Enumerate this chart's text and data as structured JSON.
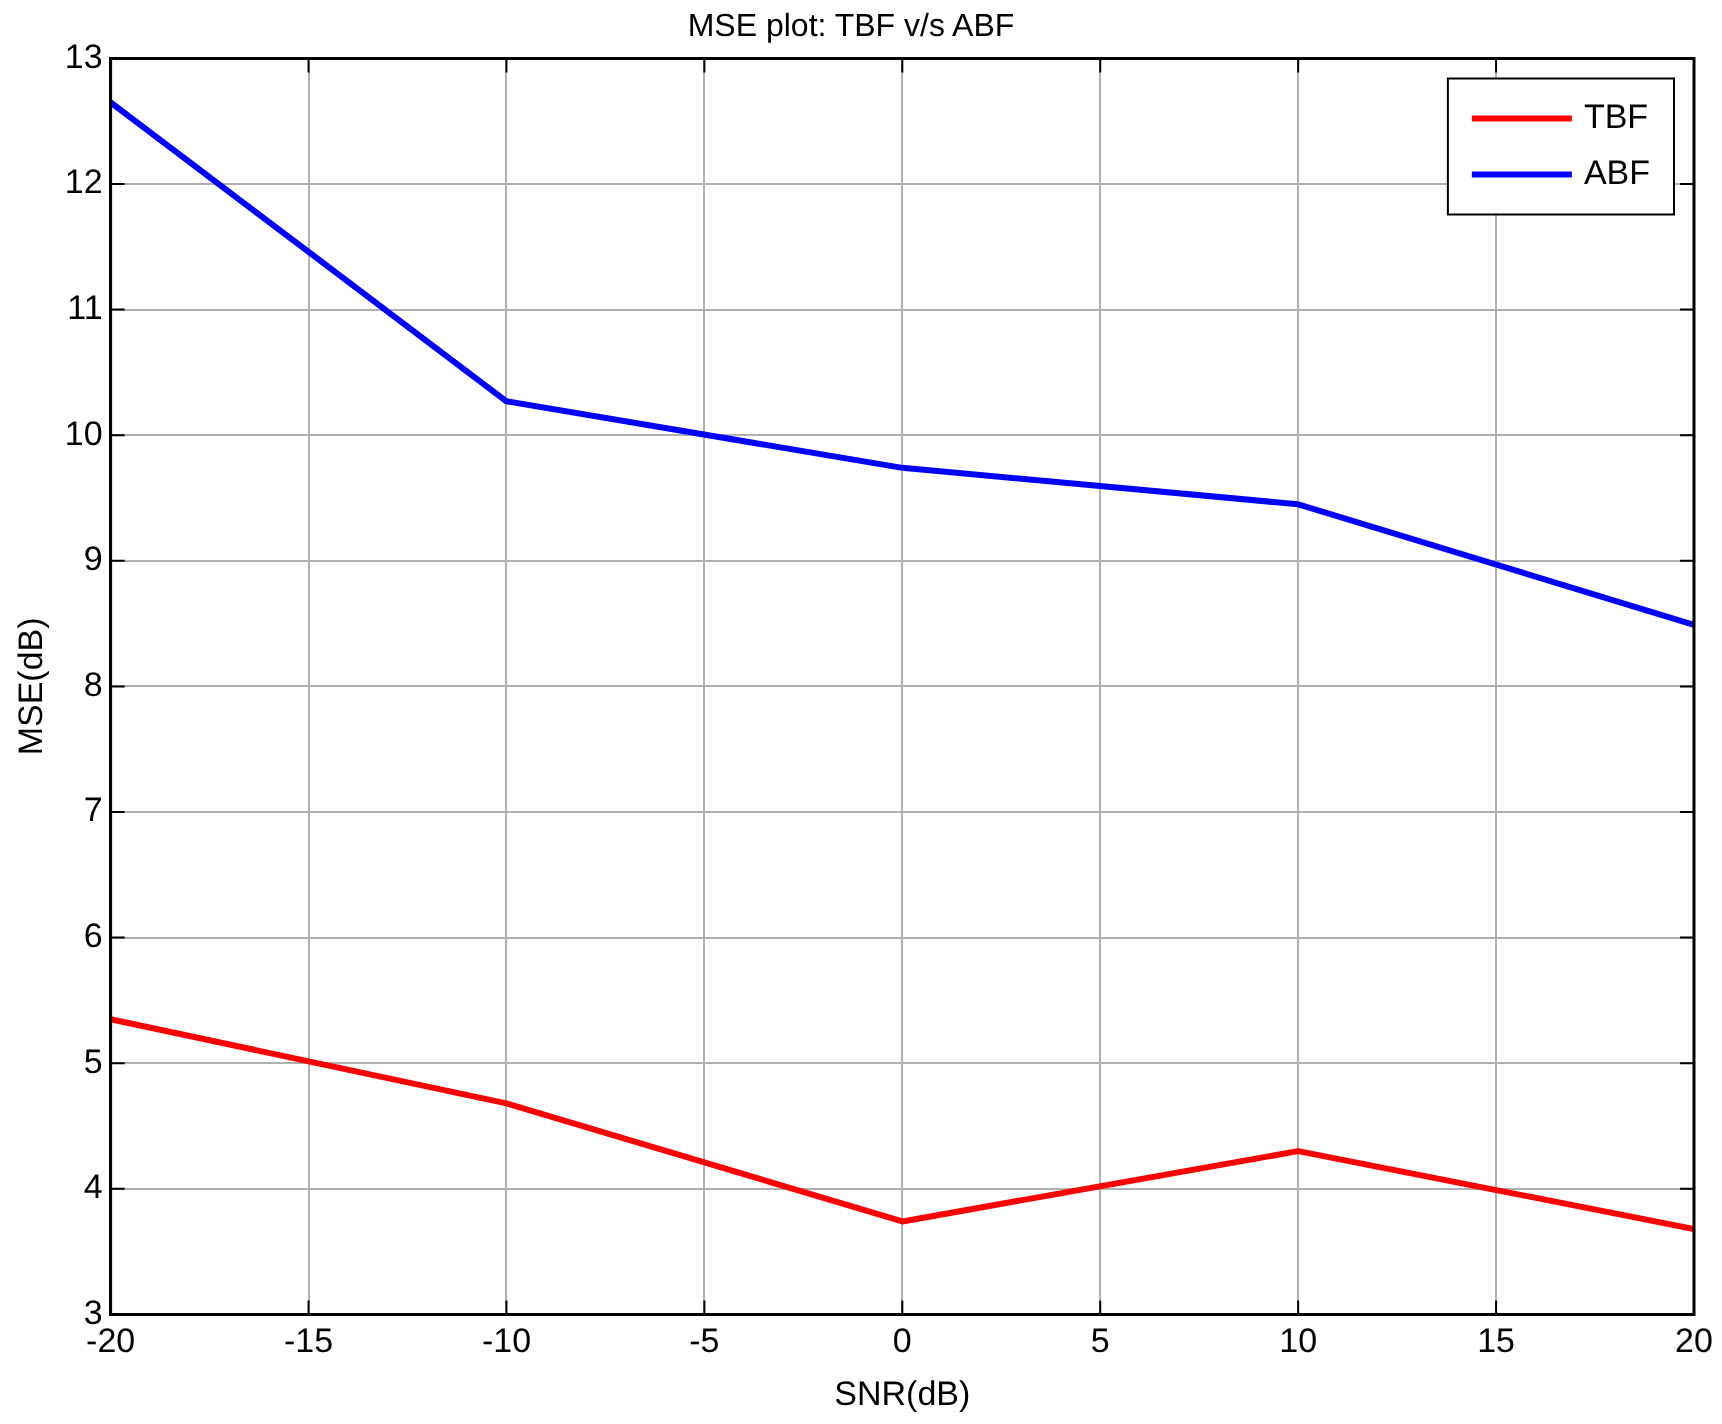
{
  "chart_data": {
    "type": "line",
    "title": "MSE plot: TBF v/s ABF",
    "xlabel": "SNR(dB)",
    "ylabel": "MSE(dB)",
    "x": [
      -20,
      -10,
      0,
      10,
      20
    ],
    "series": [
      {
        "name": "TBF",
        "color": "#ff0000",
        "values": [
          5.35,
          4.68,
          3.74,
          4.3,
          3.68
        ]
      },
      {
        "name": "ABF",
        "color": "#0000ff",
        "values": [
          12.65,
          10.27,
          9.74,
          9.45,
          8.49
        ]
      }
    ],
    "xlim": [
      -20,
      20
    ],
    "xticks": [
      -20,
      -15,
      -10,
      -5,
      0,
      5,
      10,
      15,
      20
    ],
    "ylim": [
      3,
      13
    ],
    "yticks": [
      3,
      4,
      5,
      6,
      7,
      8,
      9,
      10,
      11,
      12,
      13
    ],
    "grid": true,
    "legend": "top right",
    "marker": "none",
    "line_style": "solid"
  }
}
